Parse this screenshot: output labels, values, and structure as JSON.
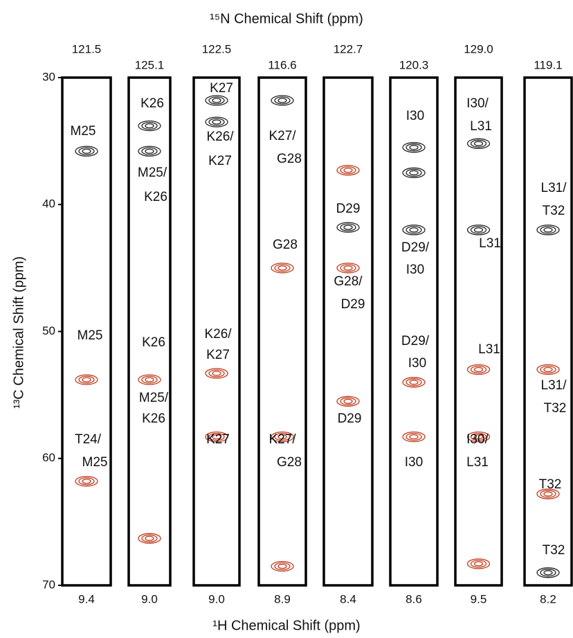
{
  "x_top_title": "¹⁵N Chemical Shift (ppm)",
  "x_bottom_title": "¹H Chemical Shift (ppm)",
  "y_title": "¹³C Chemical Shift (ppm)",
  "ylim": [
    30,
    70
  ],
  "yticks": [
    30,
    40,
    50,
    60,
    70
  ],
  "strips": [
    {
      "n15": "121.5",
      "h1": "9.4",
      "labels": [
        "M25",
        "M25",
        "T24/",
        "M25"
      ],
      "peaks": [
        {
          "c13": 35.8,
          "color": "#222222"
        },
        {
          "c13": 53.8,
          "color": "#c0391b"
        },
        {
          "c13": 61.8,
          "color": "#c0391b"
        }
      ]
    },
    {
      "n15": "125.1",
      "h1": "9.0",
      "labels": [
        "K26",
        "M25/",
        "K26",
        "K26",
        "M25/",
        "K26"
      ],
      "peaks": [
        {
          "c13": 33.8,
          "color": "#222222"
        },
        {
          "c13": 35.8,
          "color": "#222222"
        },
        {
          "c13": 53.8,
          "color": "#c0391b"
        },
        {
          "c13": 66.3,
          "color": "#c0391b"
        }
      ]
    },
    {
      "n15": "122.5",
      "h1": "9.0",
      "labels": [
        "K27",
        "K26/",
        "K27",
        "K26/",
        "K27",
        "K27"
      ],
      "peaks": [
        {
          "c13": 31.8,
          "color": "#222222"
        },
        {
          "c13": 33.5,
          "color": "#222222"
        },
        {
          "c13": 53.3,
          "color": "#c0391b"
        },
        {
          "c13": 58.3,
          "color": "#c0391b"
        }
      ]
    },
    {
      "n15": "116.6",
      "h1": "8.9",
      "labels": [
        "K27/",
        "G28",
        "G28",
        "K27/",
        "G28"
      ],
      "peaks": [
        {
          "c13": 31.8,
          "color": "#222222"
        },
        {
          "c13": 45.0,
          "color": "#c0391b"
        },
        {
          "c13": 58.3,
          "color": "#c0391b"
        },
        {
          "c13": 68.5,
          "color": "#c0391b"
        }
      ]
    },
    {
      "n15": "122.7",
      "h1": "8.4",
      "labels": [
        "D29",
        "G28/",
        "D29",
        "D29"
      ],
      "peaks": [
        {
          "c13": 37.3,
          "color": "#c0391b"
        },
        {
          "c13": 41.8,
          "color": "#222222"
        },
        {
          "c13": 45.0,
          "color": "#c0391b"
        },
        {
          "c13": 55.5,
          "color": "#c0391b"
        }
      ]
    },
    {
      "n15": "120.3",
      "h1": "8.6",
      "labels": [
        "I30",
        "D29/",
        "I30",
        "D29/",
        "I30",
        "I30"
      ],
      "peaks": [
        {
          "c13": 35.5,
          "color": "#222222"
        },
        {
          "c13": 37.5,
          "color": "#222222"
        },
        {
          "c13": 42.0,
          "color": "#222222"
        },
        {
          "c13": 54.0,
          "color": "#c0391b"
        },
        {
          "c13": 58.3,
          "color": "#c0391b"
        }
      ]
    },
    {
      "n15": "129.0",
      "h1": "9.5",
      "labels": [
        "I30/",
        "L31",
        "L31",
        "L31",
        "I30/",
        "L31"
      ],
      "peaks": [
        {
          "c13": 35.2,
          "color": "#222222"
        },
        {
          "c13": 42.0,
          "color": "#222222"
        },
        {
          "c13": 53.0,
          "color": "#c0391b"
        },
        {
          "c13": 58.3,
          "color": "#c0391b"
        },
        {
          "c13": 68.3,
          "color": "#c0391b"
        }
      ]
    },
    {
      "n15": "119.1",
      "h1": "8.2",
      "labels": [
        "L31/",
        "T32",
        "L31/",
        "T32",
        "T32",
        "T32"
      ],
      "peaks": [
        {
          "c13": 42.0,
          "color": "#222222"
        },
        {
          "c13": 53.0,
          "color": "#c0391b"
        },
        {
          "c13": 62.8,
          "color": "#c0391b"
        },
        {
          "c13": 69.0,
          "color": "#222222"
        }
      ]
    }
  ]
}
